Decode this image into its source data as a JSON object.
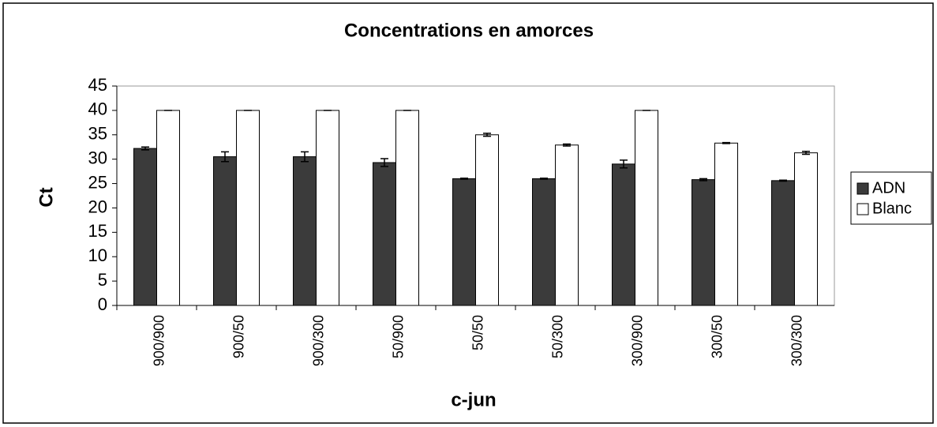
{
  "chart_data": {
    "type": "bar",
    "title": "Concentrations en amorces",
    "x_label": "c-jun",
    "y_label": "Ct",
    "categories": [
      "900/900",
      "900/50",
      "900/300",
      "50/900",
      "50/50",
      "50/300",
      "300/900",
      "300/50",
      "300/300"
    ],
    "series": [
      {
        "name": "ADN",
        "color": "#3b3b3b",
        "values": [
          32.2,
          30.5,
          30.5,
          29.3,
          26,
          26,
          29,
          25.8,
          25.6
        ],
        "errors": [
          0.3,
          1,
          1,
          0.8,
          0.1,
          0.1,
          0.8,
          0.2,
          0.1
        ]
      },
      {
        "name": "Blanc",
        "color": "#ffffff",
        "values": [
          40,
          40,
          40,
          40,
          35,
          32.9,
          40,
          33.3,
          31.3
        ],
        "errors": [
          0,
          0,
          0,
          0,
          0.3,
          0.2,
          0,
          0.1,
          0.3
        ]
      }
    ],
    "ylim": [
      0,
      45
    ],
    "yticks": [
      0,
      5,
      10,
      15,
      20,
      25,
      30,
      35,
      40,
      45
    ],
    "grid": false,
    "legend": "right"
  }
}
